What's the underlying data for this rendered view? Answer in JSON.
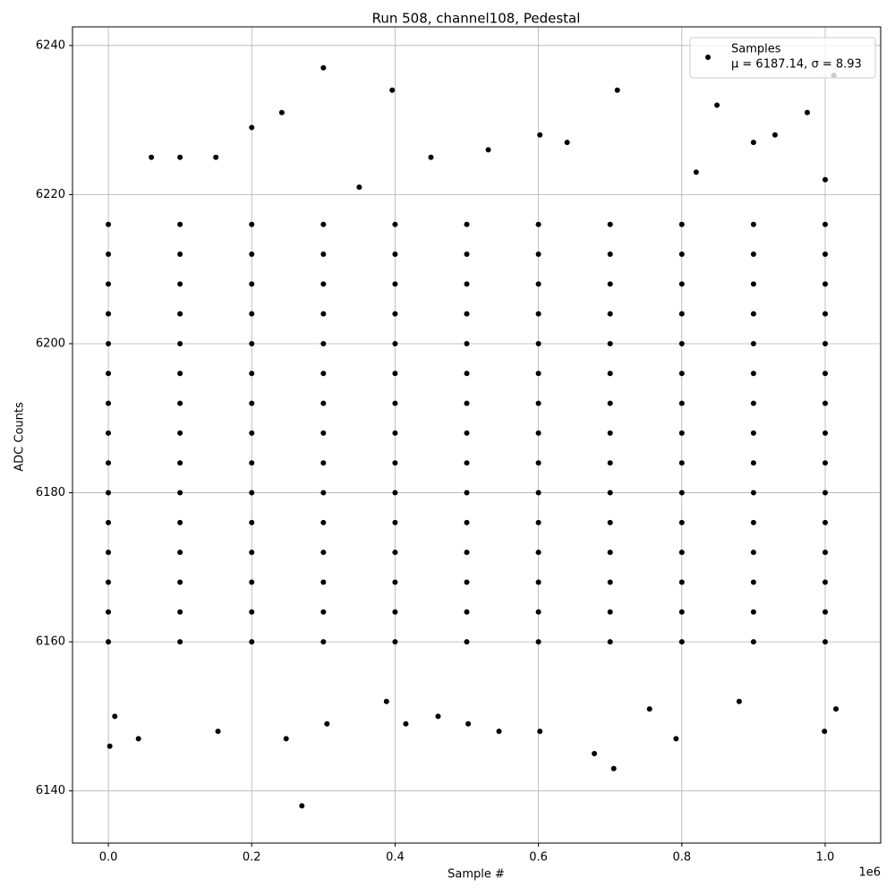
{
  "chart_data": {
    "type": "scatter",
    "title": "Run 508, channel108, Pedestal",
    "x_label": "Sample #",
    "y_label": "ADC Counts",
    "x_offset_label": "1e6",
    "xlim": [
      -50000,
      1077400
    ],
    "ylim": [
      6133,
      6242.5
    ],
    "xticks": [
      {
        "value": 0,
        "label": "0.0"
      },
      {
        "value": 200000,
        "label": "0.2"
      },
      {
        "value": 400000,
        "label": "0.4"
      },
      {
        "value": 600000,
        "label": "0.6"
      },
      {
        "value": 800000,
        "label": "0.8"
      },
      {
        "value": 1000000,
        "label": "1.0"
      }
    ],
    "yticks": [
      6140,
      6160,
      6180,
      6200,
      6220,
      6240
    ],
    "grid": true,
    "legend": "upper right",
    "legend_note": "μ = 6187.14, σ = 8.93",
    "series": [
      {
        "name": "Samples",
        "color": "#000000",
        "x": [
          0,
          100000,
          200000,
          300000,
          400000,
          500000,
          600000,
          700000,
          800000,
          900000,
          1000000,
          0,
          100000,
          200000,
          300000,
          400000,
          500000,
          600000,
          700000,
          800000,
          900000,
          1000000,
          0,
          100000,
          200000,
          300000,
          400000,
          500000,
          600000,
          700000,
          800000,
          900000,
          1000000,
          0,
          100000,
          200000,
          300000,
          400000,
          500000,
          600000,
          700000,
          800000,
          900000,
          1000000,
          0,
          100000,
          200000,
          300000,
          400000,
          500000,
          600000,
          700000,
          800000,
          900000,
          1000000,
          0,
          100000,
          200000,
          300000,
          400000,
          500000,
          600000,
          700000,
          800000,
          900000,
          1000000,
          0,
          100000,
          200000,
          300000,
          400000,
          500000,
          600000,
          700000,
          800000,
          900000,
          1000000,
          0,
          100000,
          200000,
          300000,
          400000,
          500000,
          600000,
          700000,
          800000,
          900000,
          1000000,
          0,
          100000,
          200000,
          300000,
          400000,
          500000,
          600000,
          700000,
          800000,
          900000,
          1000000,
          0,
          100000,
          200000,
          300000,
          400000,
          500000,
          600000,
          700000,
          800000,
          900000,
          1000000,
          0,
          100000,
          200000,
          300000,
          400000,
          500000,
          600000,
          700000,
          800000,
          900000,
          1000000,
          0,
          100000,
          200000,
          300000,
          400000,
          500000,
          600000,
          700000,
          800000,
          900000,
          1000000,
          0,
          100000,
          200000,
          300000,
          400000,
          500000,
          600000,
          700000,
          800000,
          900000,
          1000000,
          0,
          100000,
          200000,
          300000,
          400000,
          500000,
          600000,
          700000,
          800000,
          900000,
          1000000,
          0,
          100000,
          200000,
          300000,
          400000,
          500000,
          600000,
          700000,
          800000,
          900000,
          1000000,
          2000,
          270000,
          300000,
          396000,
          710000,
          1012000,
          705000,
          678000,
          999000,
          1015000,
          792000,
          42000,
          248000,
          153000,
          242000,
          849000,
          975000,
          930000,
          200000,
          602000,
          9000,
          388000,
          415000,
          502000,
          545000,
          602000,
          305000,
          460000,
          755000,
          880000,
          60000,
          150000,
          450000,
          640000,
          820000,
          100000,
          530000,
          1000000,
          900000,
          350000
        ],
        "values": [
          6160,
          6160,
          6160,
          6160,
          6160,
          6160,
          6160,
          6160,
          6160,
          6160,
          6160,
          6164,
          6164,
          6164,
          6164,
          6164,
          6164,
          6164,
          6164,
          6164,
          6164,
          6164,
          6168,
          6168,
          6168,
          6168,
          6168,
          6168,
          6168,
          6168,
          6168,
          6168,
          6168,
          6172,
          6172,
          6172,
          6172,
          6172,
          6172,
          6172,
          6172,
          6172,
          6172,
          6172,
          6176,
          6176,
          6176,
          6176,
          6176,
          6176,
          6176,
          6176,
          6176,
          6176,
          6176,
          6180,
          6180,
          6180,
          6180,
          6180,
          6180,
          6180,
          6180,
          6180,
          6180,
          6180,
          6184,
          6184,
          6184,
          6184,
          6184,
          6184,
          6184,
          6184,
          6184,
          6184,
          6184,
          6188,
          6188,
          6188,
          6188,
          6188,
          6188,
          6188,
          6188,
          6188,
          6188,
          6188,
          6192,
          6192,
          6192,
          6192,
          6192,
          6192,
          6192,
          6192,
          6192,
          6192,
          6192,
          6196,
          6196,
          6196,
          6196,
          6196,
          6196,
          6196,
          6196,
          6196,
          6196,
          6196,
          6200,
          6200,
          6200,
          6200,
          6200,
          6200,
          6200,
          6200,
          6200,
          6200,
          6200,
          6204,
          6204,
          6204,
          6204,
          6204,
          6204,
          6204,
          6204,
          6204,
          6204,
          6204,
          6208,
          6208,
          6208,
          6208,
          6208,
          6208,
          6208,
          6208,
          6208,
          6208,
          6208,
          6212,
          6212,
          6212,
          6212,
          6212,
          6212,
          6212,
          6212,
          6212,
          6212,
          6212,
          6216,
          6216,
          6216,
          6216,
          6216,
          6216,
          6216,
          6216,
          6216,
          6216,
          6216,
          6146,
          6138,
          6237,
          6234,
          6234,
          6236,
          6143,
          6145,
          6148,
          6151,
          6147,
          6147,
          6147,
          6148,
          6231,
          6232,
          6231,
          6228,
          6229,
          6228,
          6150,
          6152,
          6149,
          6149,
          6148,
          6148,
          6149,
          6150,
          6151,
          6152,
          6225,
          6225,
          6225,
          6227,
          6223,
          6225,
          6226,
          6222,
          6227,
          6221
        ]
      }
    ]
  }
}
